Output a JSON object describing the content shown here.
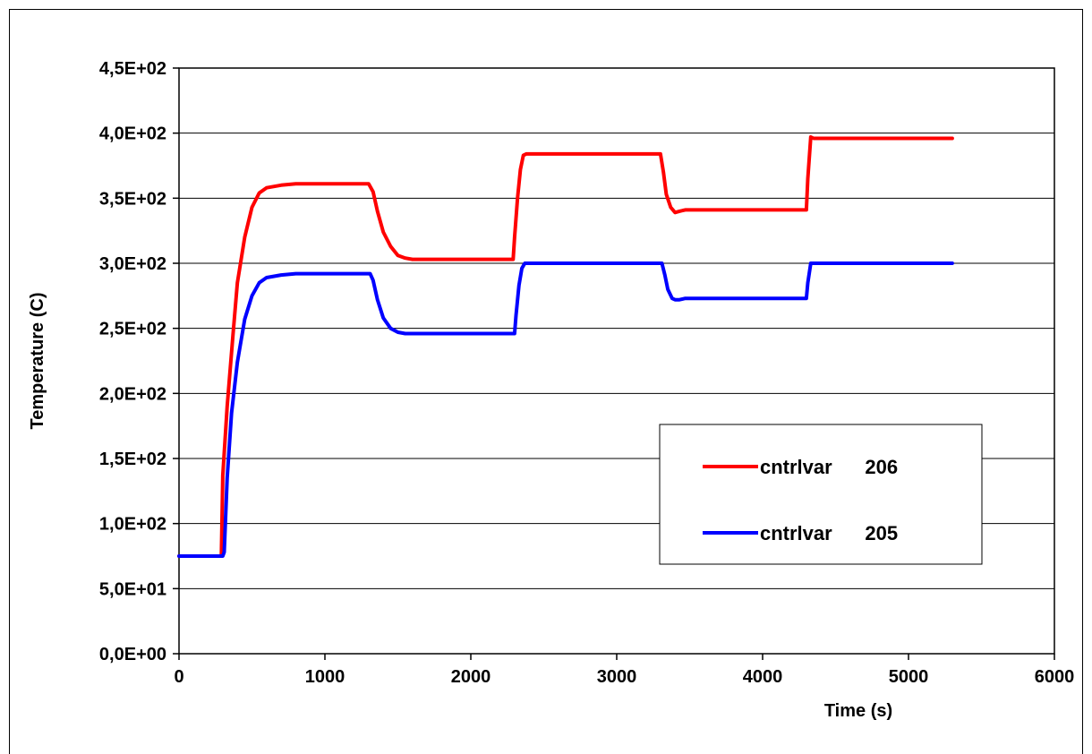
{
  "chart_data": {
    "type": "line",
    "title": "",
    "xlabel": "Time (s)",
    "ylabel": "Temperature (C)",
    "xlim": [
      0,
      6000
    ],
    "ylim": [
      0,
      450
    ],
    "x_ticks": [
      0,
      1000,
      2000,
      3000,
      4000,
      5000,
      6000
    ],
    "x_tick_labels": [
      "0",
      "1000",
      "2000",
      "3000",
      "4000",
      "5000",
      "6000"
    ],
    "y_ticks": [
      0,
      50,
      100,
      150,
      200,
      250,
      300,
      350,
      400,
      450
    ],
    "y_tick_labels": [
      "0,0E+00",
      "5,0E+01",
      "1,0E+02",
      "1,5E+02",
      "2,0E+02",
      "2,5E+02",
      "3,0E+02",
      "3,5E+02",
      "4,0E+02",
      "4,5E+02"
    ],
    "grid": "horizontal",
    "legend_position": "right-center",
    "series": [
      {
        "name": "cntrlvar      206",
        "color": "#ff0000",
        "x": [
          0,
          290,
          300,
          330,
          370,
          400,
          450,
          500,
          550,
          600,
          700,
          800,
          1000,
          1200,
          1300,
          1330,
          1360,
          1400,
          1450,
          1500,
          1550,
          1600,
          1800,
          2000,
          2290,
          2300,
          2320,
          2340,
          2360,
          2380,
          2400,
          2600,
          2800,
          3000,
          3300,
          3320,
          3340,
          3370,
          3400,
          3430,
          3470,
          3500,
          3700,
          3900,
          4100,
          4300,
          4310,
          4330,
          4350,
          4380,
          4400,
          4600,
          4800,
          5000,
          5300
        ],
        "y": [
          75,
          75,
          137,
          190,
          245,
          285,
          320,
          343,
          354,
          358,
          360,
          361,
          361,
          361,
          361,
          355,
          340,
          324,
          313,
          306,
          304,
          303,
          303,
          303,
          303,
          320,
          350,
          372,
          383,
          384,
          384,
          384,
          384,
          384,
          384,
          370,
          353,
          343,
          339,
          340,
          341,
          341,
          341,
          341,
          341,
          341,
          365,
          397,
          396,
          396,
          396,
          396,
          396,
          396,
          396
        ]
      },
      {
        "name": "cntrlvar      205",
        "color": "#0000ff",
        "x": [
          0,
          300,
          310,
          330,
          360,
          400,
          450,
          500,
          550,
          600,
          700,
          800,
          1000,
          1200,
          1310,
          1330,
          1360,
          1400,
          1450,
          1500,
          1550,
          1600,
          1800,
          2000,
          2300,
          2310,
          2330,
          2350,
          2370,
          2400,
          2600,
          2800,
          3000,
          3310,
          3330,
          3350,
          3380,
          3400,
          3430,
          3470,
          3500,
          3700,
          3900,
          4100,
          4300,
          4310,
          4330,
          4350,
          4400,
          4600,
          4800,
          5000,
          5300
        ],
        "y": [
          75,
          75,
          78,
          135,
          185,
          224,
          257,
          275,
          285,
          289,
          291,
          292,
          292,
          292,
          292,
          287,
          272,
          258,
          250,
          247,
          246,
          246,
          246,
          246,
          246,
          260,
          283,
          296,
          300,
          300,
          300,
          300,
          300,
          300,
          291,
          280,
          273,
          272,
          272,
          273,
          273,
          273,
          273,
          273,
          273,
          285,
          300,
          300,
          300,
          300,
          300,
          300,
          300
        ]
      }
    ]
  }
}
